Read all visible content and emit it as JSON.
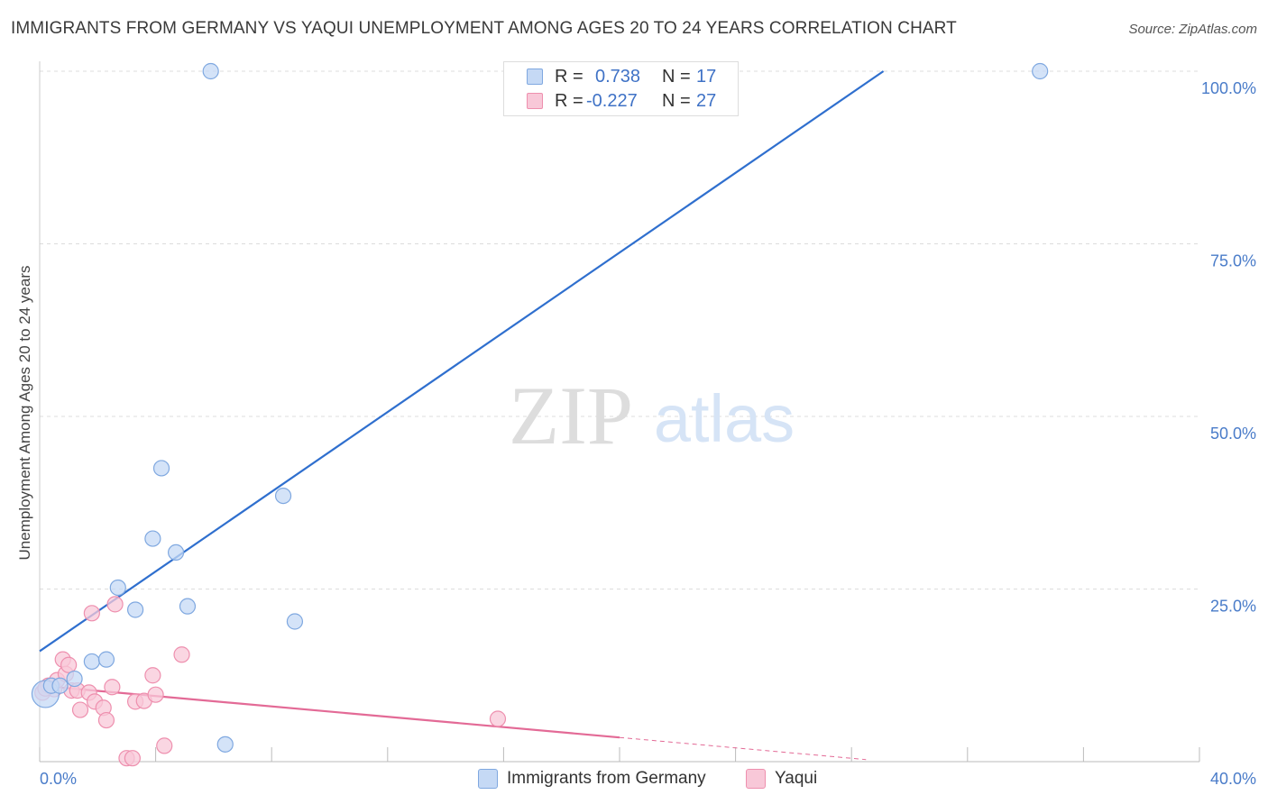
{
  "title": "IMMIGRANTS FROM GERMANY VS YAQUI UNEMPLOYMENT AMONG AGES 20 TO 24 YEARS CORRELATION CHART",
  "source": "Source: ZipAtlas.com",
  "watermark": {
    "zip": "ZIP",
    "atlas": "atlas"
  },
  "legend": {
    "series1": {
      "r_label": "R =",
      "r_value": "0.738",
      "n_label": "N =",
      "n_value": "17"
    },
    "series2": {
      "r_label": "R =",
      "r_value": "-0.227",
      "n_label": "N =",
      "n_value": "27"
    }
  },
  "colors": {
    "blue_fill": "#c5d9f5",
    "blue_stroke": "#7fa8e0",
    "blue_line": "#2f6fce",
    "pink_fill": "#f8c8d8",
    "pink_stroke": "#ee8fae",
    "pink_line": "#e36a96",
    "tick_text": "#4a7cc9",
    "grid": "#dcdcdc"
  },
  "chart_data": {
    "type": "scatter",
    "title": "IMMIGRANTS FROM GERMANY VS YAQUI UNEMPLOYMENT AMONG AGES 20 TO 24 YEARS CORRELATION CHART",
    "xlabel": "",
    "ylabel": "Unemployment Among Ages 20 to 24 years",
    "xlim": [
      0,
      40
    ],
    "ylim": [
      0,
      100
    ],
    "x_tick_labels": [
      "0.0%",
      "40.0%"
    ],
    "y_ticks": [
      25,
      50,
      75,
      100
    ],
    "y_tick_labels": [
      "25.0%",
      "50.0%",
      "75.0%",
      "100.0%"
    ],
    "grid": true,
    "series": [
      {
        "name": "Immigrants from Germany",
        "r": 0.738,
        "n": 17,
        "points": [
          {
            "x": 0.2,
            "y": 9.8,
            "big": true
          },
          {
            "x": 0.4,
            "y": 11.0
          },
          {
            "x": 0.7,
            "y": 11.0
          },
          {
            "x": 1.2,
            "y": 12.0
          },
          {
            "x": 1.8,
            "y": 14.5
          },
          {
            "x": 2.3,
            "y": 14.8
          },
          {
            "x": 2.7,
            "y": 25.2
          },
          {
            "x": 3.3,
            "y": 22.0
          },
          {
            "x": 3.9,
            "y": 32.3
          },
          {
            "x": 4.2,
            "y": 42.5
          },
          {
            "x": 4.7,
            "y": 30.3
          },
          {
            "x": 5.1,
            "y": 22.5
          },
          {
            "x": 5.9,
            "y": 100.0
          },
          {
            "x": 6.4,
            "y": 2.5
          },
          {
            "x": 8.4,
            "y": 38.5
          },
          {
            "x": 8.8,
            "y": 20.3
          },
          {
            "x": 34.5,
            "y": 100.0
          }
        ],
        "trend": {
          "x1": 0,
          "y1": 16.0,
          "x2": 29.1,
          "y2": 100.0
        }
      },
      {
        "name": "Yaqui",
        "r": -0.227,
        "n": 27,
        "points": [
          {
            "x": 0.1,
            "y": 10.0
          },
          {
            "x": 0.3,
            "y": 11.0
          },
          {
            "x": 0.5,
            "y": 10.5
          },
          {
            "x": 0.6,
            "y": 11.8
          },
          {
            "x": 0.8,
            "y": 14.8
          },
          {
            "x": 0.9,
            "y": 12.7
          },
          {
            "x": 1.0,
            "y": 14.0
          },
          {
            "x": 1.1,
            "y": 10.3
          },
          {
            "x": 1.3,
            "y": 10.3
          },
          {
            "x": 1.4,
            "y": 7.5
          },
          {
            "x": 1.7,
            "y": 10.0
          },
          {
            "x": 1.8,
            "y": 21.5
          },
          {
            "x": 1.9,
            "y": 8.7
          },
          {
            "x": 2.2,
            "y": 7.8
          },
          {
            "x": 2.3,
            "y": 6.0
          },
          {
            "x": 2.5,
            "y": 10.8
          },
          {
            "x": 2.6,
            "y": 22.8
          },
          {
            "x": 3.0,
            "y": 0.5
          },
          {
            "x": 3.2,
            "y": 0.5
          },
          {
            "x": 3.3,
            "y": 8.7
          },
          {
            "x": 3.6,
            "y": 8.8
          },
          {
            "x": 3.9,
            "y": 12.5
          },
          {
            "x": 4.0,
            "y": 9.7
          },
          {
            "x": 4.3,
            "y": 2.3
          },
          {
            "x": 4.9,
            "y": 15.5
          },
          {
            "x": 15.8,
            "y": 6.2
          },
          {
            "x": 0.2,
            "y": 10.6
          }
        ],
        "trend": {
          "x1": 0,
          "y1": 11.0,
          "x2": 20.0,
          "y2": 3.5
        },
        "trend_extension": {
          "x1": 20.0,
          "y1": 3.5,
          "x2": 28.5,
          "y2": 0.3
        }
      }
    ]
  },
  "bottom_legend": [
    "Immigrants from Germany",
    "Yaqui"
  ]
}
